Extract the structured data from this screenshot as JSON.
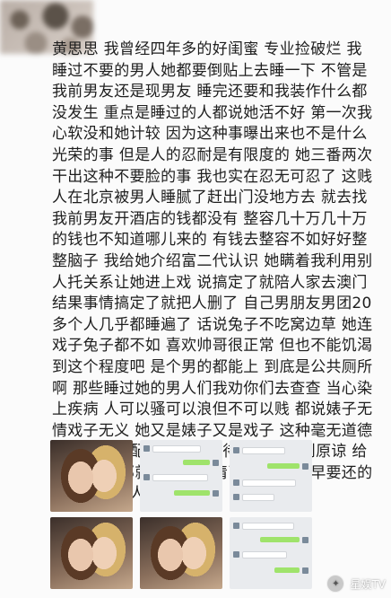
{
  "post": {
    "text": "黄思思 我曾经四年多的好闺蜜 专业捡破烂 我睡过不要的男人她都要倒贴上去睡一下 不管是我前男友还是现男友 睡完还要和我装作什么都没发生 重点是睡过的人都说她活不好 第一次我心软没和她计较 因为这种事曝出来也不是什么光荣的事 但是人的忍耐是有限度的 她三番两次干出这种不要脸的事 我也实在忍无可忍了 这贱人在北京被男人睡腻了赶出门没地方去 就去找我前男友开酒店的钱都没有 整容几十万几十万的钱也不知道哪儿来的 有钱去整容不如好好整整脑子 我给她介绍富二代认识 她瞒着我利用别人托关系让她进上戏 说搞定了就陪人家去澳门 结果事情搞定了就把人删了 自己男朋友男团20多个人几乎都睡遍了 话说兔子不吃窝边草 她连戏子兔子都不如 喜欢帅哥很正常 但也不能饥渴到这个程度吧 是个男的都能上 到底是公共厕所啊 那些睡过她的男人们我劝你们去查查 当心染上疾病 人可以骚可以浪但不可以贱 都说婊子无情戏子无义 她又是婊子又是戏子 这种毫无道德底线的人不配被善意的对待更不配得到原谅 给脸不要脸 那就别怪我无情了 出来混迟早要还的 不是谁的男人都能瞎睡"
  },
  "watermark": {
    "text": "星娱TV",
    "icon": "logo-icon"
  },
  "colors": {
    "text": "#1e1e1e",
    "background": "#fbfbfb",
    "chat_bubble_green": "#9fe36b"
  }
}
